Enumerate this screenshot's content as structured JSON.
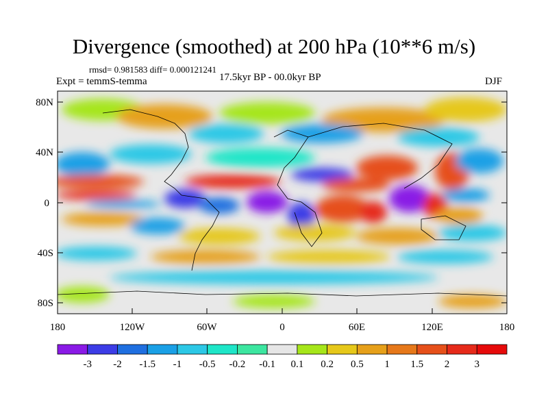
{
  "title": "Divergence (smoothed) at 200 hPa (10**6 m/s)",
  "stats": "rmsd= 0.981583 diff= 0.000121241",
  "experiment": "Expt = temmS-temma",
  "period": "17.5kyr BP - 00.0kyr BP",
  "season": "DJF",
  "y_axis_labels": [
    "80N",
    "40N",
    "0",
    "40S",
    "80S"
  ],
  "x_axis_labels": [
    "180",
    "120W",
    "60W",
    "0",
    "60E",
    "120E",
    "180"
  ],
  "colorbar": {
    "labels": [
      "-3",
      "-2",
      "-1.5",
      "-1",
      "-0.5",
      "-0.2",
      "-0.1",
      "0.1",
      "0.2",
      "0.5",
      "1",
      "1.5",
      "2",
      "3"
    ],
    "colors": [
      "#8a1ae6",
      "#3c3ce6",
      "#1f6fe0",
      "#1aa0e6",
      "#2cc8e6",
      "#1ee6c8",
      "#3ce6a0",
      "#e6e6e6",
      "#a6e61a",
      "#e6c81a",
      "#e6a01a",
      "#e6781a",
      "#e6501a",
      "#e62a1a",
      "#e60a0a"
    ]
  },
  "icons": {
    "map": "world-map-icon"
  }
}
